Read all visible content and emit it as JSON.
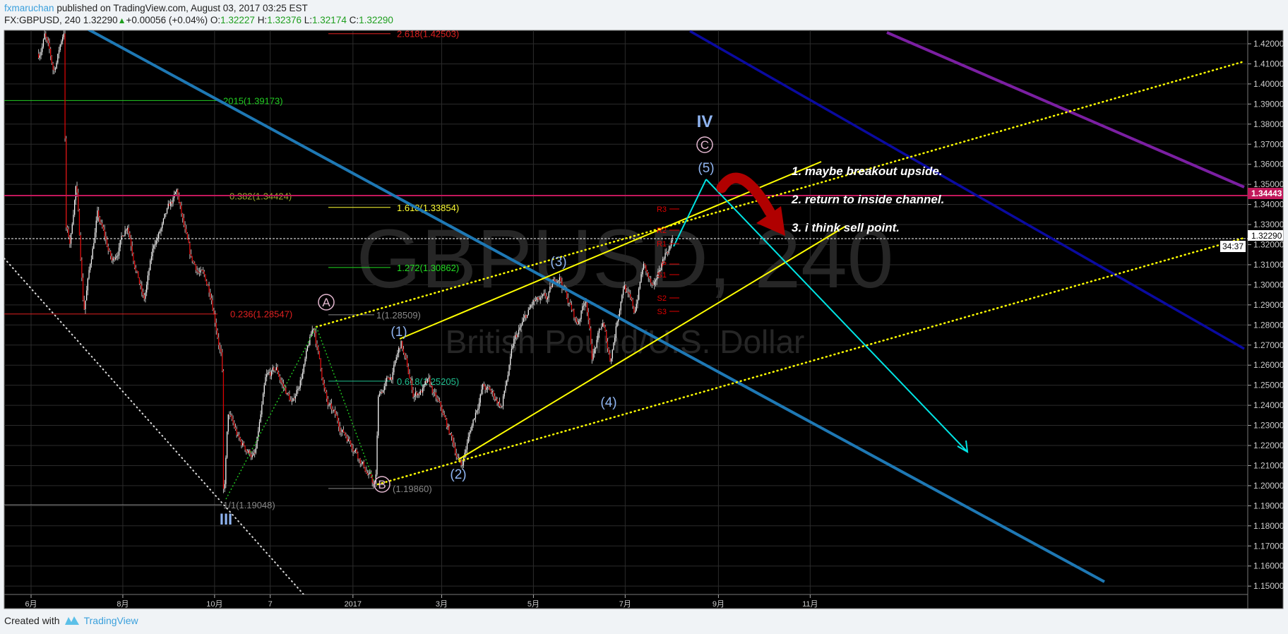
{
  "header": {
    "author": "fxmaruchan",
    "published": "published on TradingView.com, August 03, 2017 03:25 EST",
    "symbol_line": "FX:GBPUSD, 240 1.32290",
    "change": "+0.00056 (+0.04%)",
    "o_label": "O:",
    "o_value": "1.32227",
    "h_label": "H:",
    "h_value": "1.32376",
    "l_label": "L:",
    "l_value": "1.32174",
    "c_label": "C:",
    "c_value": "1.32290",
    "up_icon": "triangle-up-icon"
  },
  "footer": {
    "created_with": "Created with",
    "brand": "TradingView"
  },
  "colors": {
    "up_candle": "#ffffff",
    "down_candle": "#e00000",
    "background": "#000000",
    "grid": "#2b2b2b",
    "magenta_level": "#c2185b",
    "channel": "#ffff00",
    "cyan_path": "#00e5e5",
    "downtrend_1": "#1e78b4",
    "downtrend_2": "#0a0aa0",
    "downtrend_3": "#7b1fa2",
    "arrow": "#b00000",
    "wave_label": "#8fb4f0"
  },
  "chart_data": {
    "type": "candlestick",
    "symbol": "GBPUSD",
    "interval": "240",
    "watermark": {
      "title": "GBPUSD, 240",
      "subtitle": "British Pound/U.S. Dollar"
    },
    "ylim": [
      1.145,
      1.4267
    ],
    "grid": true,
    "y_ticks": [
      "1.42000",
      "1.41000",
      "1.40000",
      "1.39000",
      "1.38000",
      "1.37000",
      "1.36000",
      "1.35000",
      "1.34000",
      "1.33000",
      "1.32000",
      "1.31000",
      "1.30000",
      "1.29000",
      "1.28000",
      "1.27000",
      "1.26000",
      "1.25000",
      "1.24000",
      "1.23000",
      "1.22000",
      "1.21000",
      "1.20000",
      "1.19000",
      "1.18000",
      "1.17000",
      "1.16000",
      "1.15000"
    ],
    "x_ticks": [
      {
        "label": "6月",
        "date": "2016-06-01"
      },
      {
        "label": "8月",
        "date": "2016-08-01"
      },
      {
        "label": "10月",
        "date": "2016-10-01"
      },
      {
        "label": "7",
        "date": "2016-11-07"
      },
      {
        "label": "2017",
        "date": "2017-01-01"
      },
      {
        "label": "3月",
        "date": "2017-03-01"
      },
      {
        "label": "5月",
        "date": "2017-05-01"
      },
      {
        "label": "7月",
        "date": "2017-07-01"
      },
      {
        "label": "9月",
        "date": "2017-09-01"
      },
      {
        "label": "11月",
        "date": "2017-11-01"
      }
    ],
    "last_price": {
      "value": "1.32290",
      "countdown": "34:37"
    },
    "level_badge": {
      "value": "1.34443",
      "price": 1.34443
    },
    "price_swings": [
      [
        "2016-06-06",
        1.415
      ],
      [
        "2016-06-10",
        1.425
      ],
      [
        "2016-06-16",
        1.405
      ],
      [
        "2016-06-23",
        1.428
      ],
      [
        "2016-06-24",
        1.33
      ],
      [
        "2016-06-27",
        1.32
      ],
      [
        "2016-07-01",
        1.352
      ],
      [
        "2016-07-06",
        1.288
      ],
      [
        "2016-07-15",
        1.335
      ],
      [
        "2016-07-25",
        1.31
      ],
      [
        "2016-08-04",
        1.332
      ],
      [
        "2016-08-15",
        1.292
      ],
      [
        "2016-08-22",
        1.32
      ],
      [
        "2016-09-06",
        1.344
      ],
      [
        "2016-09-15",
        1.31
      ],
      [
        "2016-09-22",
        1.305
      ],
      [
        "2016-09-29",
        1.295
      ],
      [
        "2016-10-06",
        1.265
      ],
      [
        "2016-10-07",
        1.19048
      ],
      [
        "2016-10-10",
        1.235
      ],
      [
        "2016-10-18",
        1.22
      ],
      [
        "2016-10-28",
        1.215
      ],
      [
        "2016-11-04",
        1.25
      ],
      [
        "2016-11-11",
        1.256
      ],
      [
        "2016-11-22",
        1.24
      ],
      [
        "2016-12-06",
        1.278
      ],
      [
        "2016-12-15",
        1.24
      ],
      [
        "2016-12-22",
        1.23
      ],
      [
        "2017-01-03",
        1.22
      ],
      [
        "2017-01-16",
        1.1986
      ],
      [
        "2017-01-18",
        1.245
      ],
      [
        "2017-01-27",
        1.255
      ],
      [
        "2017-02-02",
        1.27
      ],
      [
        "2017-02-10",
        1.245
      ],
      [
        "2017-02-20",
        1.25
      ],
      [
        "2017-03-01",
        1.235
      ],
      [
        "2017-03-14",
        1.21
      ],
      [
        "2017-03-28",
        1.25
      ],
      [
        "2017-04-10",
        1.24
      ],
      [
        "2017-04-18",
        1.27
      ],
      [
        "2017-05-01",
        1.29
      ],
      [
        "2017-05-10",
        1.29
      ],
      [
        "2017-05-18",
        1.305
      ],
      [
        "2017-05-30",
        1.28
      ],
      [
        "2017-06-05",
        1.295
      ],
      [
        "2017-06-09",
        1.265
      ],
      [
        "2017-06-16",
        1.28
      ],
      [
        "2017-06-21",
        1.262
      ],
      [
        "2017-06-30",
        1.303
      ],
      [
        "2017-07-07",
        1.285
      ],
      [
        "2017-07-13",
        1.31
      ],
      [
        "2017-07-20",
        1.295
      ],
      [
        "2017-07-27",
        1.315
      ],
      [
        "2017-08-02",
        1.3229
      ]
    ],
    "fib_levels": [
      {
        "label": "2.618(1.42503)",
        "price": 1.42503,
        "color": "#e02020"
      },
      {
        "label": "2015(1.39173)",
        "price": 1.39173,
        "color": "#22cc22"
      },
      {
        "label": "0.382(1.34424)",
        "price": 1.34424,
        "color": "#9aa830"
      },
      {
        "label": "1.618(1.33854)",
        "price": 1.33854,
        "color": "#ffff33"
      },
      {
        "label": "1.272(1.30862)",
        "price": 1.30862,
        "color": "#22dd22"
      },
      {
        "label": "0.236(1.28547)",
        "price": 1.28547,
        "color": "#e02020"
      },
      {
        "label": "1(1.28509)",
        "price": 1.28509,
        "color": "#888888"
      },
      {
        "label": "0.618(1.25205)",
        "price": 1.25205,
        "color": "#20c090"
      },
      {
        "label": "1/1(1.19048)",
        "price": 1.19048,
        "color": "#888888"
      },
      {
        "label": "(1.19860)",
        "price": 1.1986,
        "color": "#888888"
      }
    ],
    "pivots": [
      "R3",
      "R2",
      "R1",
      "P",
      "S1",
      "S2",
      "S3"
    ],
    "wave_labels": {
      "A": "A",
      "B": "B",
      "C": "C",
      "IV": "IV",
      "III": "III",
      "w1": "(1)",
      "w2": "(2)",
      "w3": "(3)",
      "w4": "(4)",
      "w5": "(5)"
    },
    "annotations": [
      "1. maybe breakout upside.",
      "2. return to inside channel.",
      "3. i think sell point."
    ]
  }
}
